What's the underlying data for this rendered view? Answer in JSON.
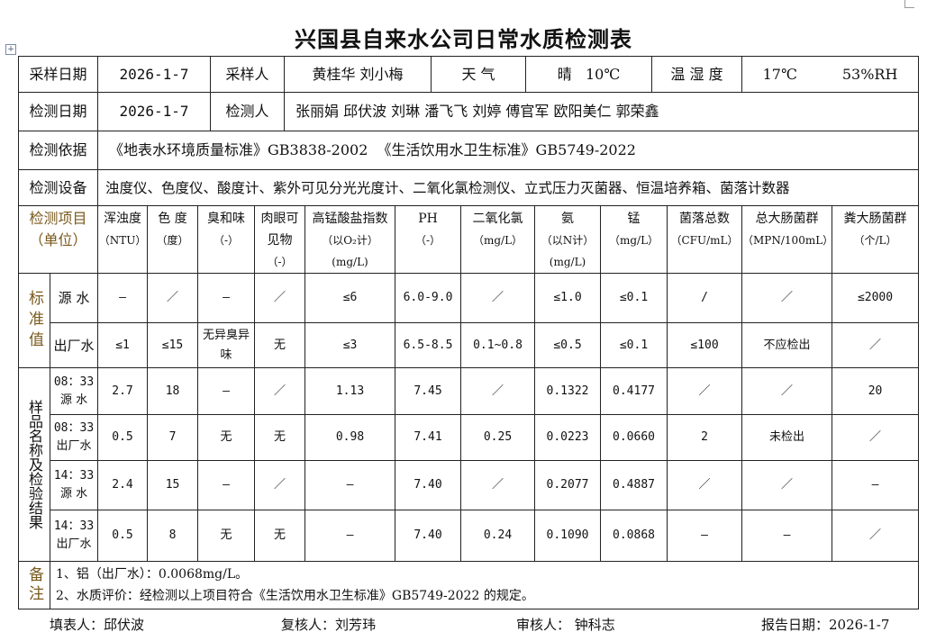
{
  "title": "兴国县自来水公司日常水质检测表",
  "info": {
    "sample_date_label": "采样日期",
    "sample_date": "2026-1-7",
    "sampler_label": "采样人",
    "samplers": "黄桂华 刘小梅",
    "weather_label": "天 气",
    "weather": "晴   10℃",
    "temp_humidity_label": "温 湿 度",
    "temperature": "17℃",
    "humidity": "53%RH",
    "test_date_label": "检测日期",
    "test_date": "2026-1-7",
    "tester_label": "检测人",
    "testers": "张丽娟 邱伏波 刘琳 潘飞飞 刘婷 傅官军 欧阳美仁 郭荣鑫",
    "basis_label": "检测依据",
    "basis": "《地表水环境质量标准》GB3838-2002  《生活饮用水卫生标准》GB5749-2022",
    "equipment_label": "检测设备",
    "equipment": "浊度仪、色度仪、酸度计、紫外可见分光光度计、二氧化氯检测仪、立式压力灭菌器、恒温培养箱、菌落计数器"
  },
  "table": {
    "item_label": "检测项目",
    "unit_label": "（单位）",
    "columns": [
      {
        "name": "浑浊度",
        "unit": "（NTU）"
      },
      {
        "name": "色 度",
        "unit": "（度）"
      },
      {
        "name": "臭和味",
        "unit": "（-）"
      },
      {
        "name": "肉眼可见物",
        "unit": "（-）"
      },
      {
        "name": "高锰酸盐指数",
        "unit": "（以O₂计）(mg/L)"
      },
      {
        "name": "PH",
        "unit": "（-）"
      },
      {
        "name": "二氧化氯",
        "unit": "（mg/L）"
      },
      {
        "name": "氨",
        "unit": "（以N计）(mg/L)"
      },
      {
        "name": "锰",
        "unit": "（mg/L）"
      },
      {
        "name": "菌落总数",
        "unit": "（CFU/mL）"
      },
      {
        "name": "总大肠菌群",
        "unit": "（MPN/100mL）"
      },
      {
        "name": "粪大肠菌群",
        "unit": "（个/L）"
      }
    ],
    "standard_label": "标准值",
    "standards": [
      {
        "label": "源  水",
        "values": [
          "—",
          "／",
          "—",
          "／",
          "≤6",
          "6.0-9.0",
          "／",
          "≤1.0",
          "≤0.1",
          "/",
          "／",
          "≤2000"
        ]
      },
      {
        "label": "出厂水",
        "values": [
          "≤1",
          "≤15",
          "无异臭异味",
          "无",
          "≤3",
          "6.5-8.5",
          "0.1~0.8",
          "≤0.5",
          "≤0.1",
          "≤100",
          "不应检出",
          "／"
        ]
      }
    ],
    "samples_label": "样品名称及检验结果",
    "samples": [
      {
        "time": "08：33",
        "label": "源 水",
        "values": [
          "2.7",
          "18",
          "—",
          "／",
          "1.13",
          "7.45",
          "／",
          "0.1322",
          "0.4177",
          "／",
          "／",
          "20"
        ]
      },
      {
        "time": "08：33",
        "label": "出厂水",
        "values": [
          "0.5",
          "7",
          "无",
          "无",
          "0.98",
          "7.41",
          "0.25",
          "0.0223",
          "0.0660",
          "2",
          "未检出",
          "／"
        ]
      },
      {
        "time": "14：33",
        "label": "源 水",
        "values": [
          "2.4",
          "15",
          "—",
          "／",
          "—",
          "7.40",
          "／",
          "0.2077",
          "0.4887",
          "／",
          "／",
          "—"
        ]
      },
      {
        "time": "14：33",
        "label": "出厂水",
        "values": [
          "0.5",
          "8",
          "无",
          "无",
          "—",
          "7.40",
          "0.24",
          "0.1090",
          "0.0868",
          "—",
          "—",
          "／"
        ]
      }
    ],
    "notes_label": "备注",
    "notes": [
      "1、铝（出厂水）：0.0068mg/L。",
      "2、水质评价：经检测以上项目符合《生活饮用水卫生标准》GB5749-2022 的规定。"
    ]
  },
  "footer": {
    "filler": "填表人：邱伏波",
    "reviewer": "复核人：刘芳玮",
    "approver": "审核人： 钟科志",
    "report_date": "报告日期：2026-1-7"
  }
}
